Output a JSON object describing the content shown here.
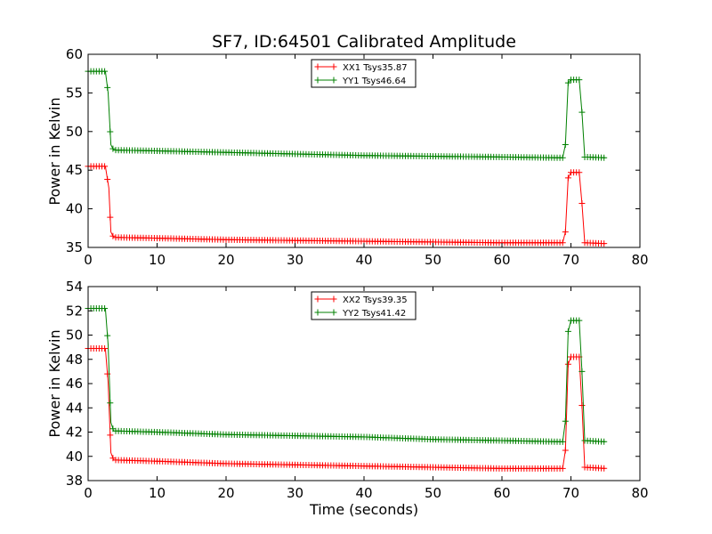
{
  "chart_data": [
    {
      "type": "line",
      "title": "SF7, ID:64501 Calibrated Amplitude",
      "xlabel": "",
      "ylabel": "Power in Kelvin",
      "xlim": [
        0,
        80
      ],
      "ylim": [
        35,
        60
      ],
      "xticks": [
        0,
        10,
        20,
        30,
        40,
        50,
        60,
        70,
        80
      ],
      "yticks": [
        35,
        40,
        45,
        50,
        55,
        60
      ],
      "grid": false,
      "legend_position": "top-center",
      "series": [
        {
          "name": "XX1 Tsys35.87",
          "color": "#ff0000",
          "points": [
            [
              0,
              45.5
            ],
            [
              2.5,
              45.5
            ],
            [
              3.0,
              42.7
            ],
            [
              3.3,
              37.0
            ],
            [
              3.7,
              36.3
            ],
            [
              10,
              36.2
            ],
            [
              20,
              36.0
            ],
            [
              30,
              35.9
            ],
            [
              40,
              35.8
            ],
            [
              50,
              35.7
            ],
            [
              60,
              35.6
            ],
            [
              68.8,
              35.6
            ],
            [
              69.2,
              37.0
            ],
            [
              69.6,
              44.0
            ],
            [
              70,
              44.7
            ],
            [
              71.2,
              44.7
            ],
            [
              71.6,
              40.7
            ],
            [
              72,
              35.6
            ],
            [
              75,
              35.5
            ]
          ]
        },
        {
          "name": "YY1 Tsys46.64",
          "color": "#008000",
          "points": [
            [
              0,
              57.8
            ],
            [
              2.5,
              57.8
            ],
            [
              2.9,
              55.0
            ],
            [
              3.3,
              48.3
            ],
            [
              3.7,
              47.6
            ],
            [
              10,
              47.5
            ],
            [
              20,
              47.3
            ],
            [
              30,
              47.1
            ],
            [
              40,
              46.9
            ],
            [
              50,
              46.8
            ],
            [
              60,
              46.7
            ],
            [
              68.8,
              46.6
            ],
            [
              69.2,
              48.3
            ],
            [
              69.6,
              56.3
            ],
            [
              70,
              56.7
            ],
            [
              71.2,
              56.7
            ],
            [
              71.6,
              52.5
            ],
            [
              72,
              46.7
            ],
            [
              75,
              46.6
            ]
          ]
        }
      ]
    },
    {
      "type": "line",
      "title": "",
      "xlabel": "Time (seconds)",
      "ylabel": "Power in Kelvin",
      "xlim": [
        0,
        80
      ],
      "ylim": [
        38,
        54
      ],
      "xticks": [
        0,
        10,
        20,
        30,
        40,
        50,
        60,
        70,
        80
      ],
      "yticks": [
        38,
        40,
        42,
        44,
        46,
        48,
        50,
        52,
        54
      ],
      "grid": false,
      "legend_position": "top-center",
      "series": [
        {
          "name": "XX2 Tsys39.35",
          "color": "#ff0000",
          "points": [
            [
              0,
              48.9
            ],
            [
              2.5,
              48.9
            ],
            [
              2.9,
              46.1
            ],
            [
              3.3,
              40.3
            ],
            [
              3.7,
              39.7
            ],
            [
              10,
              39.6
            ],
            [
              20,
              39.4
            ],
            [
              30,
              39.3
            ],
            [
              40,
              39.2
            ],
            [
              50,
              39.1
            ],
            [
              60,
              39.0
            ],
            [
              68.8,
              39.0
            ],
            [
              69.2,
              40.5
            ],
            [
              69.6,
              47.6
            ],
            [
              70,
              48.2
            ],
            [
              71.2,
              48.2
            ],
            [
              71.6,
              44.2
            ],
            [
              72,
              39.1
            ],
            [
              75,
              39.0
            ]
          ]
        },
        {
          "name": "YY2 Tsys41.42",
          "color": "#008000",
          "points": [
            [
              0,
              52.2
            ],
            [
              2.5,
              52.2
            ],
            [
              2.9,
              49.2
            ],
            [
              3.3,
              42.8
            ],
            [
              3.7,
              42.1
            ],
            [
              10,
              42.0
            ],
            [
              20,
              41.8
            ],
            [
              30,
              41.7
            ],
            [
              40,
              41.6
            ],
            [
              50,
              41.4
            ],
            [
              60,
              41.3
            ],
            [
              68.8,
              41.2
            ],
            [
              69.2,
              42.9
            ],
            [
              69.6,
              50.3
            ],
            [
              70,
              51.2
            ],
            [
              71.2,
              51.2
            ],
            [
              71.6,
              47.0
            ],
            [
              72,
              41.3
            ],
            [
              75,
              41.2
            ]
          ]
        }
      ]
    }
  ]
}
